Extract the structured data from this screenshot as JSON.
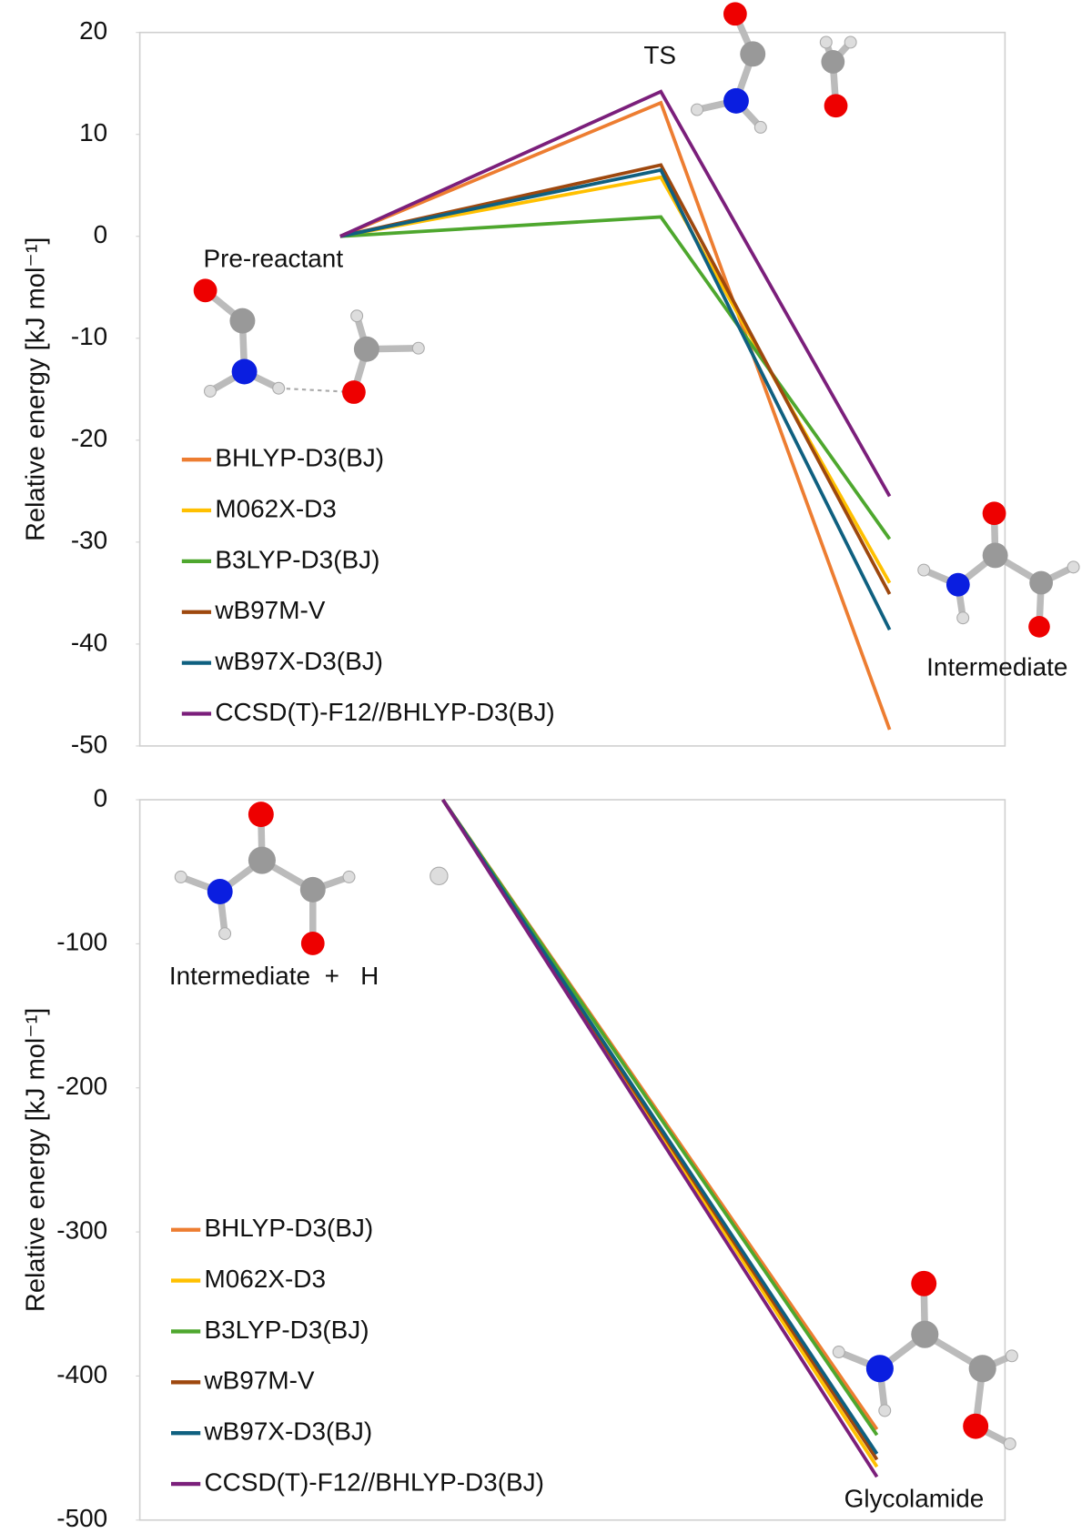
{
  "chart_data": [
    {
      "type": "line",
      "ylabel": "Relative energy [kJ mol⁻¹]",
      "categories": [
        "Pre-reactant",
        "TS",
        "Intermediate"
      ],
      "ylim": [
        -50,
        20
      ],
      "yticks": [
        20,
        10,
        0,
        -10,
        -20,
        -30,
        -40,
        -50
      ],
      "series": [
        {
          "name": "BHLYP-D3(BJ)",
          "color": "#ed7d31",
          "values": [
            0,
            13.1,
            -48.4
          ]
        },
        {
          "name": "M062X-D3",
          "color": "#ffc000",
          "values": [
            0,
            5.8,
            -34.0
          ]
        },
        {
          "name": "B3LYP-D3(BJ)",
          "color": "#4ea72e",
          "values": [
            0,
            1.9,
            -29.7
          ]
        },
        {
          "name": "wB97M-V",
          "color": "#9e480e",
          "values": [
            0,
            7.0,
            -35.1
          ]
        },
        {
          "name": "wB97X-D3(BJ)",
          "color": "#0f6080",
          "values": [
            0,
            6.5,
            -38.6
          ]
        },
        {
          "name": "CCSD(T)-F12//BHLYP-D3(BJ)",
          "color": "#7b1f7b",
          "values": [
            0,
            14.2,
            -25.5
          ]
        }
      ]
    },
    {
      "type": "line",
      "ylabel": "Relative energy [kJ mol⁻¹]",
      "categories": [
        "Intermediate  +   H",
        "Glycolamide"
      ],
      "ylim": [
        -500,
        0
      ],
      "yticks": [
        0,
        -100,
        -200,
        -300,
        -400,
        -500
      ],
      "series": [
        {
          "name": "BHLYP-D3(BJ)",
          "color": "#ed7d31",
          "values": [
            0,
            -437
          ]
        },
        {
          "name": "M062X-D3",
          "color": "#ffc000",
          "values": [
            0,
            -463
          ]
        },
        {
          "name": "B3LYP-D3(BJ)",
          "color": "#4ea72e",
          "values": [
            0,
            -441
          ]
        },
        {
          "name": "wB97M-V",
          "color": "#9e480e",
          "values": [
            0,
            -458
          ]
        },
        {
          "name": "wB97X-D3(BJ)",
          "color": "#0f6080",
          "values": [
            0,
            -454
          ]
        },
        {
          "name": "CCSD(T)-F12//BHLYP-D3(BJ)",
          "color": "#7b1f7b",
          "values": [
            0,
            -470
          ]
        }
      ]
    }
  ]
}
